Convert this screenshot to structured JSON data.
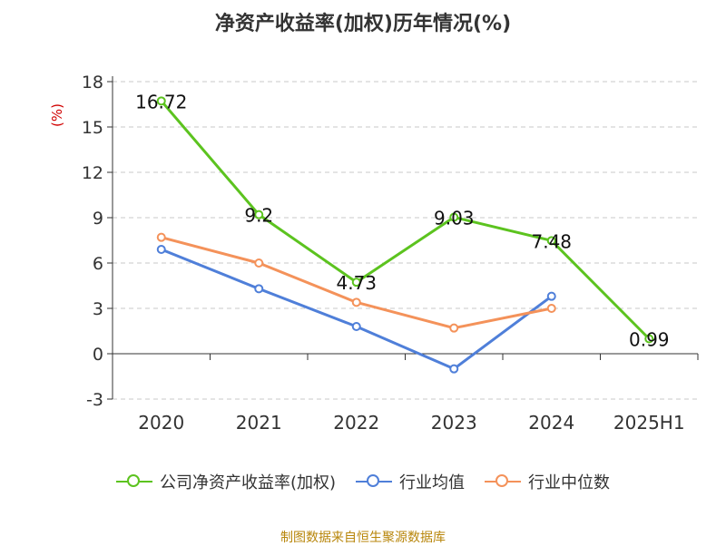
{
  "title": "净资产收益率(加权)历年情况(%)",
  "source": "制图数据来自恒生聚源数据库",
  "chart_data": {
    "type": "line",
    "title": "净资产收益率(加权)历年情况(%)",
    "ylabel": "(%)",
    "xlabel": "",
    "categories": [
      "2020",
      "2021",
      "2022",
      "2023",
      "2024",
      "2025H1"
    ],
    "ylim": [
      -3,
      18
    ],
    "yticks": [
      -3,
      0,
      3,
      6,
      9,
      12,
      15,
      18
    ],
    "grid": true,
    "legend_position": "bottom",
    "series": [
      {
        "name": "公司净资产收益率(加权)",
        "color": "#5cc31f",
        "values": [
          16.72,
          9.2,
          4.73,
          9.03,
          7.48,
          0.99
        ],
        "labels": [
          "16.72",
          "9.2",
          "4.73",
          "9.03",
          "7.48",
          "0.99"
        ]
      },
      {
        "name": "行业均值",
        "color": "#4f7fd9",
        "values": [
          6.9,
          4.3,
          1.8,
          -1.0,
          3.8,
          null
        ]
      },
      {
        "name": "行业中位数",
        "color": "#f4925a",
        "values": [
          7.7,
          6.0,
          3.4,
          1.7,
          3.0,
          null
        ]
      }
    ]
  }
}
